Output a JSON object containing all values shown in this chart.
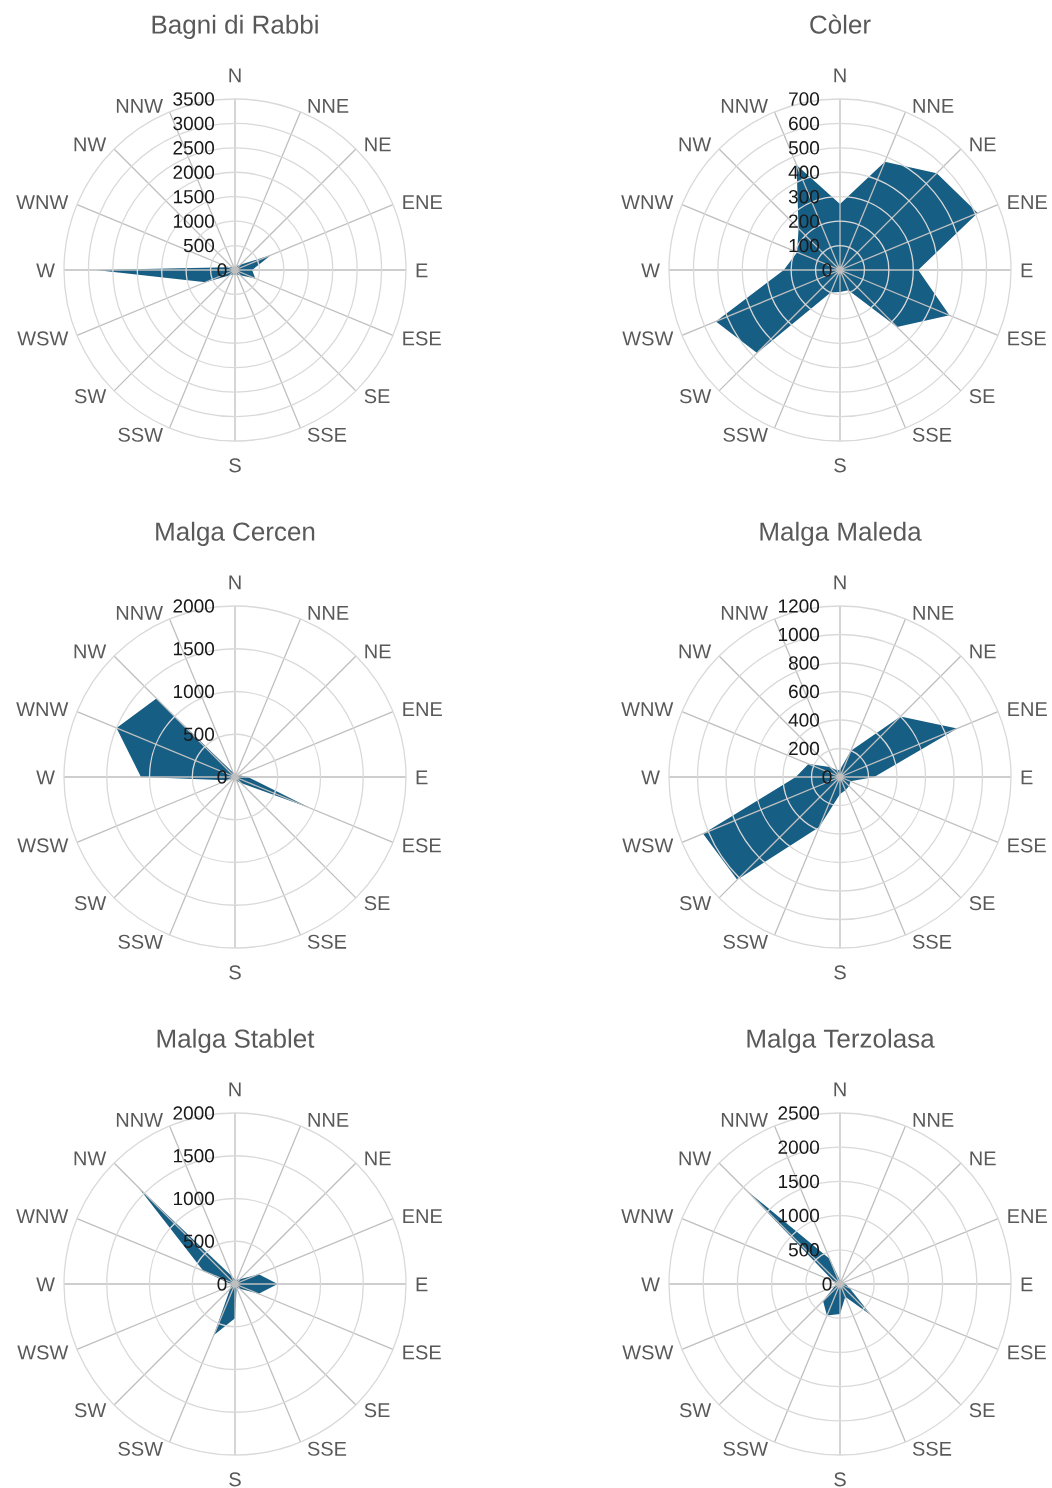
{
  "chart_data": [
    {
      "type": "radar",
      "title": "Bagni di Rabbi",
      "categories": [
        "N",
        "NNE",
        "NE",
        "ENE",
        "E",
        "ESE",
        "SE",
        "SSE",
        "S",
        "SSW",
        "SW",
        "WSW",
        "W",
        "WNW",
        "NW",
        "NNW"
      ],
      "values": [
        50,
        80,
        150,
        800,
        350,
        450,
        150,
        100,
        100,
        100,
        150,
        650,
        2850,
        150,
        80,
        50
      ],
      "color": "#175e84",
      "ylim": [
        0,
        3500
      ],
      "yticks": [
        0,
        500,
        1000,
        1500,
        2000,
        2500,
        3000,
        3500
      ],
      "grid": true
    },
    {
      "type": "radar",
      "title": "Còler",
      "categories": [
        "N",
        "NNE",
        "NE",
        "ENE",
        "E",
        "ESE",
        "SE",
        "SSE",
        "S",
        "SSW",
        "SW",
        "WSW",
        "W",
        "WNW",
        "NW",
        "NNW"
      ],
      "values": [
        270,
        480,
        560,
        610,
        320,
        485,
        330,
        90,
        90,
        100,
        480,
        550,
        230,
        190,
        240,
        465
      ],
      "color": "#175e84",
      "ylim": [
        0,
        700
      ],
      "yticks": [
        0,
        100,
        200,
        300,
        400,
        500,
        600,
        700
      ],
      "grid": true
    },
    {
      "type": "radar",
      "title": "Malga Cercen",
      "categories": [
        "N",
        "NNE",
        "NE",
        "ENE",
        "E",
        "ESE",
        "SE",
        "SSE",
        "S",
        "SSW",
        "SW",
        "WSW",
        "W",
        "WNW",
        "NW",
        "NNW"
      ],
      "values": [
        30,
        30,
        30,
        50,
        150,
        950,
        100,
        50,
        30,
        30,
        30,
        100,
        1100,
        1500,
        1300,
        50
      ],
      "color": "#175e84",
      "ylim": [
        0,
        2000
      ],
      "yticks": [
        0,
        500,
        1000,
        1500,
        2000
      ],
      "grid": true
    },
    {
      "type": "radar",
      "title": "Malga Maleda",
      "categories": [
        "N",
        "NNE",
        "NE",
        "ENE",
        "E",
        "ESE",
        "SE",
        "SSE",
        "S",
        "SSW",
        "SW",
        "WSW",
        "W",
        "WNW",
        "NW",
        "NNW"
      ],
      "values": [
        50,
        200,
        600,
        890,
        240,
        80,
        90,
        100,
        120,
        380,
        1020,
        1040,
        310,
        240,
        100,
        50
      ],
      "color": "#175e84",
      "ylim": [
        0,
        1200
      ],
      "yticks": [
        0,
        200,
        400,
        600,
        800,
        1000,
        1200
      ],
      "grid": true
    },
    {
      "type": "radar",
      "title": "Malga Stablet",
      "categories": [
        "N",
        "NNE",
        "NE",
        "ENE",
        "E",
        "ESE",
        "SE",
        "SSE",
        "S",
        "SSW",
        "SW",
        "WSW",
        "W",
        "WNW",
        "NW",
        "NNW"
      ],
      "values": [
        50,
        50,
        80,
        300,
        500,
        300,
        80,
        50,
        400,
        650,
        80,
        50,
        50,
        400,
        1600,
        100
      ],
      "color": "#175e84",
      "ylim": [
        0,
        2000
      ],
      "yticks": [
        0,
        500,
        1000,
        1500,
        2000
      ],
      "grid": true
    },
    {
      "type": "radar",
      "title": "Malga Terzolasa",
      "categories": [
        "N",
        "NNE",
        "NE",
        "ENE",
        "E",
        "ESE",
        "SE",
        "SSE",
        "S",
        "SSW",
        "SW",
        "WSW",
        "W",
        "WNW",
        "NW",
        "NNW"
      ],
      "values": [
        50,
        50,
        50,
        50,
        80,
        150,
        650,
        200,
        440,
        500,
        350,
        80,
        50,
        100,
        1950,
        400
      ],
      "color": "#175e84",
      "ylim": [
        0,
        2500
      ],
      "yticks": [
        0,
        500,
        1000,
        1500,
        2000,
        2500
      ],
      "grid": true
    }
  ]
}
